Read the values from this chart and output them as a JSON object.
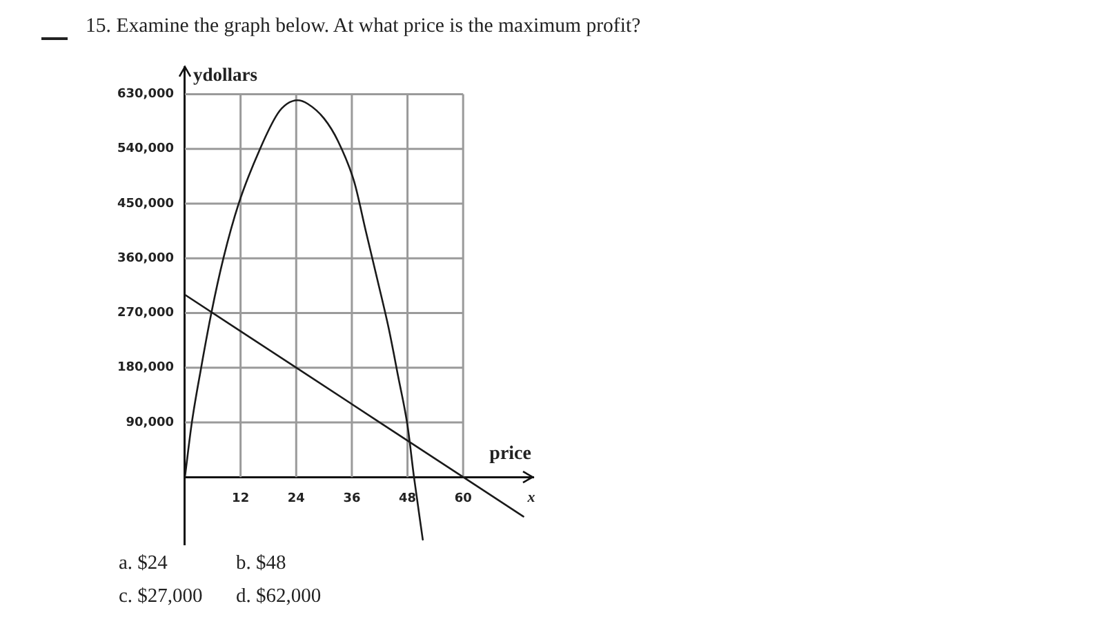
{
  "chart_data": {
    "type": "line",
    "title": "15. Examine the graph below. At what price is the maximum profit?",
    "xlabel": "price",
    "ylabel": "ydollars",
    "annotations": [
      "x",
      "a. $24",
      "b. $48",
      "c. $27,000",
      "d. $62,000"
    ],
    "series": [
      {
        "color": "#1a1a1a",
        "x": [
          0,
          1.5,
          3.5,
          5.7,
          8.3,
          11.6,
          16.2,
          20,
          22,
          24.3,
          26.5,
          30,
          33,
          36.5,
          39,
          41.5,
          44,
          46,
          48,
          49.4,
          51.3
        ],
        "values": [
          0,
          90000,
          180000,
          270000,
          360000,
          450000,
          540000,
          598000,
          614000,
          620000,
          614000,
          590000,
          553000,
          486000,
          405000,
          325000,
          243000,
          165000,
          85000,
          0,
          -103000
        ]
      },
      {
        "color": "#1a1a1a",
        "x": [
          0,
          24,
          60,
          73
        ],
        "values": [
          300000,
          180000,
          0,
          -65000
        ]
      }
    ],
    "xlim": [
      0,
      75
    ],
    "ylim": [
      -110000,
      675000
    ],
    "xticks": [
      12,
      24,
      36,
      48,
      60
    ],
    "yticks": [
      {
        "value": 90000,
        "label": "90,000"
      },
      {
        "value": 180000,
        "label": "180,000"
      },
      {
        "value": 270000,
        "label": "270,000"
      },
      {
        "value": 360000,
        "label": "360,000"
      },
      {
        "value": 450000,
        "label": "450,000"
      },
      {
        "value": 540000,
        "label": "540,000"
      },
      {
        "value": 630000,
        "label": "630,000"
      }
    ],
    "grid": true,
    "marker": "none"
  }
}
